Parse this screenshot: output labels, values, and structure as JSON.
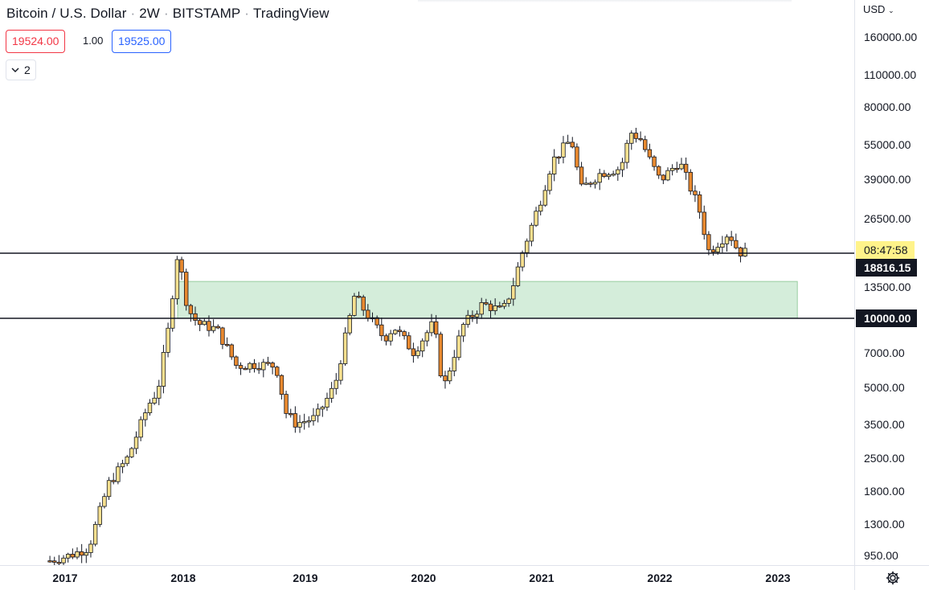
{
  "header": {
    "symbol": "Bitcoin / U.S. Dollar",
    "interval": "2W",
    "exchange": "BITSTAMP",
    "source": "TradingView",
    "separator": "·",
    "bid": "19524.00",
    "spread": "1.00",
    "ask": "19525.00",
    "indicators_count": "2"
  },
  "price_scale": {
    "currency": "USD",
    "ticks": [
      "160000.00",
      "110000.00",
      "80000.00",
      "55000.00",
      "39000.00",
      "26500.00",
      "13500.00",
      "7000.00",
      "5000.00",
      "3500.00",
      "2500.00",
      "1800.00",
      "1300.00",
      "950.00"
    ],
    "countdown": "08:47:58",
    "last_price": "18816.15",
    "level_label": "10000.00"
  },
  "time_scale": {
    "labels": [
      "2017",
      "2018",
      "2019",
      "2020",
      "2021",
      "2022",
      "2023"
    ]
  },
  "colors": {
    "bull": "#f7e08f",
    "bear": "#e8892f",
    "wick": "#131722",
    "zone_fill": "#d4edda",
    "zone_stroke": "#98cda0",
    "countdown_bg": "#fff38a",
    "label_bg": "#131722"
  },
  "chart_data": {
    "type": "candlestick",
    "title": "Bitcoin / U.S. Dollar · 2W · BITSTAMP",
    "y_scale": "log",
    "ylim": [
      860,
      200000
    ],
    "x_range": [
      "2016-11",
      "2023-04"
    ],
    "horizontal_lines": [
      18816.15,
      10000
    ],
    "zone": {
      "from_date": "2017-12",
      "to_date": "2023-03",
      "low": 10000,
      "high": 14300
    },
    "series_close": [
      [
        "2016-11",
        950
      ],
      [
        "2017-01",
        1000
      ],
      [
        "2017-03",
        1080
      ],
      [
        "2017-05",
        2000
      ],
      [
        "2017-07",
        2600
      ],
      [
        "2017-09",
        4300
      ],
      [
        "2017-10",
        5000
      ],
      [
        "2017-11",
        8800
      ],
      [
        "2017-12",
        19000
      ],
      [
        "2018-01",
        11000
      ],
      [
        "2018-02",
        9500
      ],
      [
        "2018-04",
        9000
      ],
      [
        "2018-06",
        6300
      ],
      [
        "2018-08",
        6400
      ],
      [
        "2018-10",
        6300
      ],
      [
        "2018-11",
        4000
      ],
      [
        "2018-12",
        3600
      ],
      [
        "2019-02",
        3800
      ],
      [
        "2019-04",
        5200
      ],
      [
        "2019-05",
        8000
      ],
      [
        "2019-06",
        12500
      ],
      [
        "2019-07",
        10800
      ],
      [
        "2019-09",
        8200
      ],
      [
        "2019-10",
        9200
      ],
      [
        "2019-12",
        7200
      ],
      [
        "2020-02",
        9600
      ],
      [
        "2020-03",
        5000
      ],
      [
        "2020-05",
        9300
      ],
      [
        "2020-07",
        11500
      ],
      [
        "2020-09",
        10700
      ],
      [
        "2020-10",
        13500
      ],
      [
        "2020-11",
        19000
      ],
      [
        "2021-01",
        33000
      ],
      [
        "2021-02",
        46000
      ],
      [
        "2021-04",
        57000
      ],
      [
        "2021-05",
        35000
      ],
      [
        "2021-07",
        41000
      ],
      [
        "2021-09",
        43000
      ],
      [
        "2021-10",
        61000
      ],
      [
        "2021-11",
        57000
      ],
      [
        "2021-12",
        46000
      ],
      [
        "2022-01",
        38000
      ],
      [
        "2022-03",
        46000
      ],
      [
        "2022-05",
        29000
      ],
      [
        "2022-06",
        19000
      ],
      [
        "2022-07",
        21000
      ],
      [
        "2022-08",
        23000
      ],
      [
        "2022-09",
        19000
      ],
      [
        "2022-10",
        19000
      ]
    ]
  }
}
